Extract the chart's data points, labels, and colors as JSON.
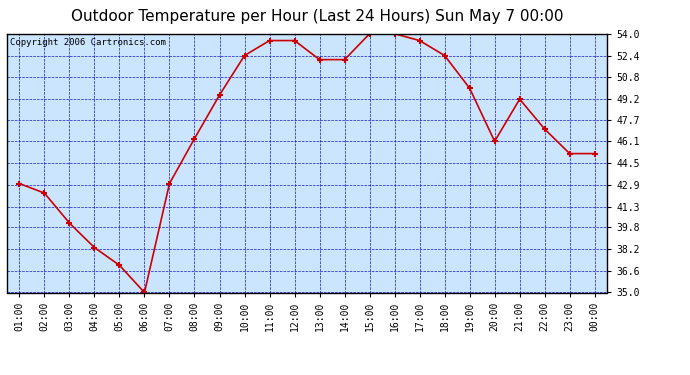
{
  "title": "Outdoor Temperature per Hour (Last 24 Hours) Sun May 7 00:00",
  "copyright_text": "Copyright 2006 Cartronics.com",
  "hours": [
    "01:00",
    "02:00",
    "03:00",
    "04:00",
    "05:00",
    "06:00",
    "07:00",
    "08:00",
    "09:00",
    "10:00",
    "11:00",
    "12:00",
    "13:00",
    "14:00",
    "15:00",
    "16:00",
    "17:00",
    "18:00",
    "19:00",
    "20:00",
    "21:00",
    "22:00",
    "23:00",
    "00:00"
  ],
  "temperatures": [
    43.0,
    42.3,
    40.1,
    38.3,
    37.0,
    35.0,
    43.0,
    46.3,
    49.5,
    52.4,
    53.5,
    53.5,
    52.1,
    52.1,
    54.0,
    54.0,
    53.5,
    52.4,
    50.0,
    46.1,
    49.2,
    47.0,
    45.2,
    45.2
  ],
  "y_ticks": [
    35.0,
    36.6,
    38.2,
    39.8,
    41.3,
    42.9,
    44.5,
    46.1,
    47.7,
    49.2,
    50.8,
    52.4,
    54.0
  ],
  "y_min": 35.0,
  "y_max": 54.0,
  "line_color": "#cc0000",
  "marker_color": "#cc0000",
  "plot_bg_color": "#cce5ff",
  "fig_bg_color": "#ffffff",
  "grid_color": "#0000bb",
  "border_color": "#000000",
  "title_fontsize": 11,
  "copyright_fontsize": 6.5,
  "tick_fontsize": 7
}
